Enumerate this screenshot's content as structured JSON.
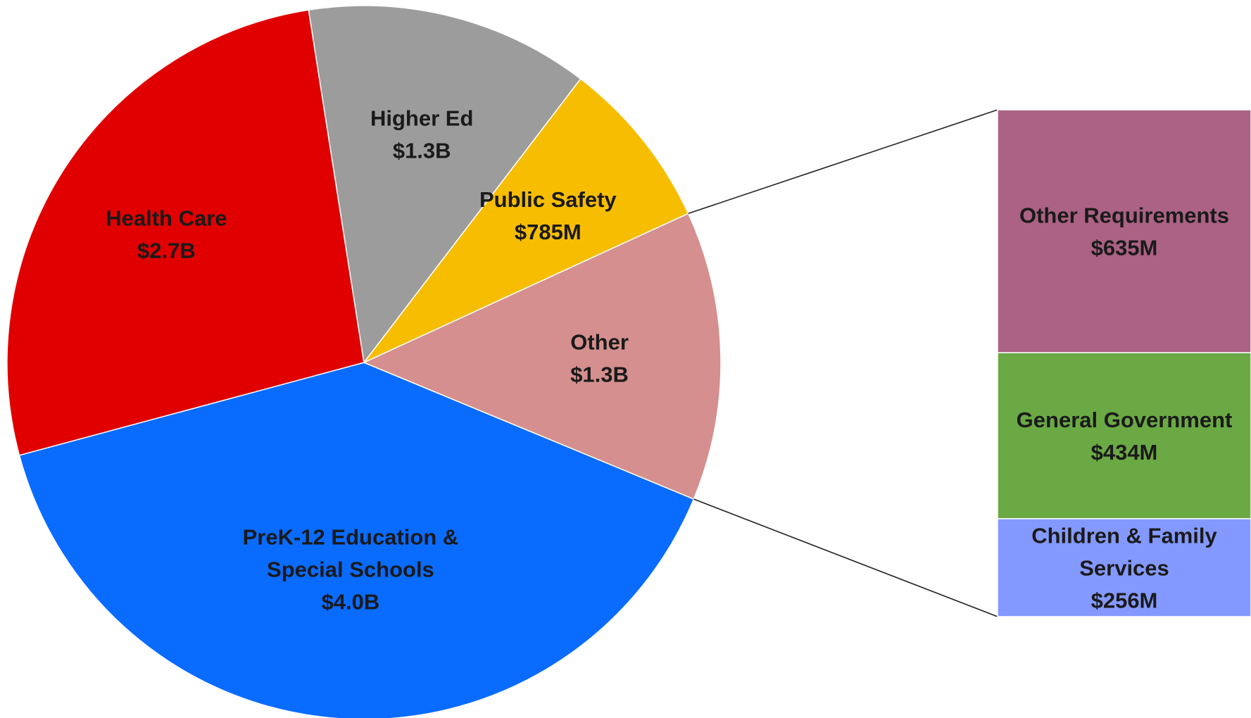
{
  "chart_data": {
    "type": "pie",
    "title": "",
    "slices": [
      {
        "label_lines": [
          "PreK-12 Education &",
          "Special Schools"
        ],
        "value_label": "$4.0B",
        "value": 4.0,
        "color": "#0a6bff"
      },
      {
        "label_lines": [
          "Health Care"
        ],
        "value_label": "$2.7B",
        "value": 2.7,
        "color": "#e00000"
      },
      {
        "label_lines": [
          "Higher Ed"
        ],
        "value_label": "$1.3B",
        "value": 1.3,
        "color": "#9c9c9c"
      },
      {
        "label_lines": [
          "Public Safety"
        ],
        "value_label": "$785M",
        "value": 0.785,
        "color": "#f7bd00"
      },
      {
        "label_lines": [
          "Other"
        ],
        "value_label": "$1.3B",
        "value": 1.325,
        "color": "#d58f8e",
        "exploded": true
      }
    ],
    "breakdown": {
      "of": "Other",
      "type": "stacked-bar",
      "segments": [
        {
          "label_lines": [
            "Other Requirements"
          ],
          "value_label": "$635M",
          "value": 635,
          "color": "#ab6284"
        },
        {
          "label_lines": [
            "General Government"
          ],
          "value_label": "$434M",
          "value": 434,
          "color": "#6ba945"
        },
        {
          "label_lines": [
            "Children & Family",
            "Services"
          ],
          "value_label": "$256M",
          "value": 256,
          "color": "#8499ff"
        }
      ]
    }
  }
}
